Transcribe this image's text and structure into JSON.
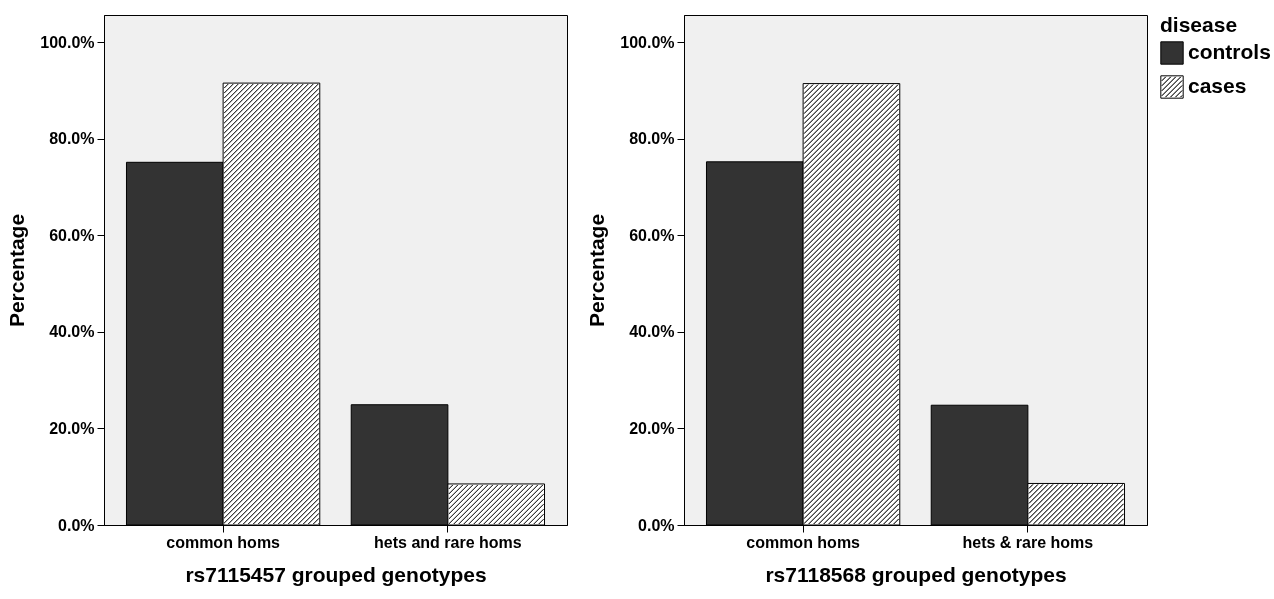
{
  "chart_data": [
    {
      "type": "bar",
      "xlabel": "rs7115457 grouped genotypes",
      "ylabel": "Percentage",
      "categories": [
        "common homs",
        "hets and rare homs"
      ],
      "ylim": [
        0,
        105.6
      ],
      "yticks": [
        {
          "value": 0,
          "label": "0.0%"
        },
        {
          "value": 20,
          "label": "20.0%"
        },
        {
          "value": 40,
          "label": "40.0%"
        },
        {
          "value": 60,
          "label": "60.0%"
        },
        {
          "value": 80,
          "label": "80.0%"
        },
        {
          "value": 100,
          "label": "100.0%"
        }
      ],
      "grid": false,
      "legend": "top right",
      "series": [
        {
          "name": "controls",
          "color": "#333333",
          "values": [
            75.1,
            24.9
          ]
        },
        {
          "name": "cases",
          "color": "#ffffff",
          "values": [
            91.5,
            8.5
          ]
        }
      ]
    },
    {
      "type": "bar",
      "xlabel": "rs7118568 grouped genotypes",
      "ylabel": "Percentage",
      "categories": [
        "common homs",
        "hets & rare homs"
      ],
      "ylim": [
        0,
        105.6
      ],
      "yticks": [
        {
          "value": 0,
          "label": "0.0%"
        },
        {
          "value": 20,
          "label": "20.0%"
        },
        {
          "value": 40,
          "label": "40.0%"
        },
        {
          "value": 60,
          "label": "60.0%"
        },
        {
          "value": 80,
          "label": "80.0%"
        },
        {
          "value": 100,
          "label": "100.0%"
        }
      ],
      "grid": false,
      "legend": "top right",
      "legend_title": "disease",
      "series": [
        {
          "name": "controls",
          "color": "#333333",
          "values": [
            75.2,
            24.8
          ]
        },
        {
          "name": "cases",
          "color": "#ffffff",
          "values": [
            91.4,
            8.6
          ]
        }
      ]
    }
  ]
}
